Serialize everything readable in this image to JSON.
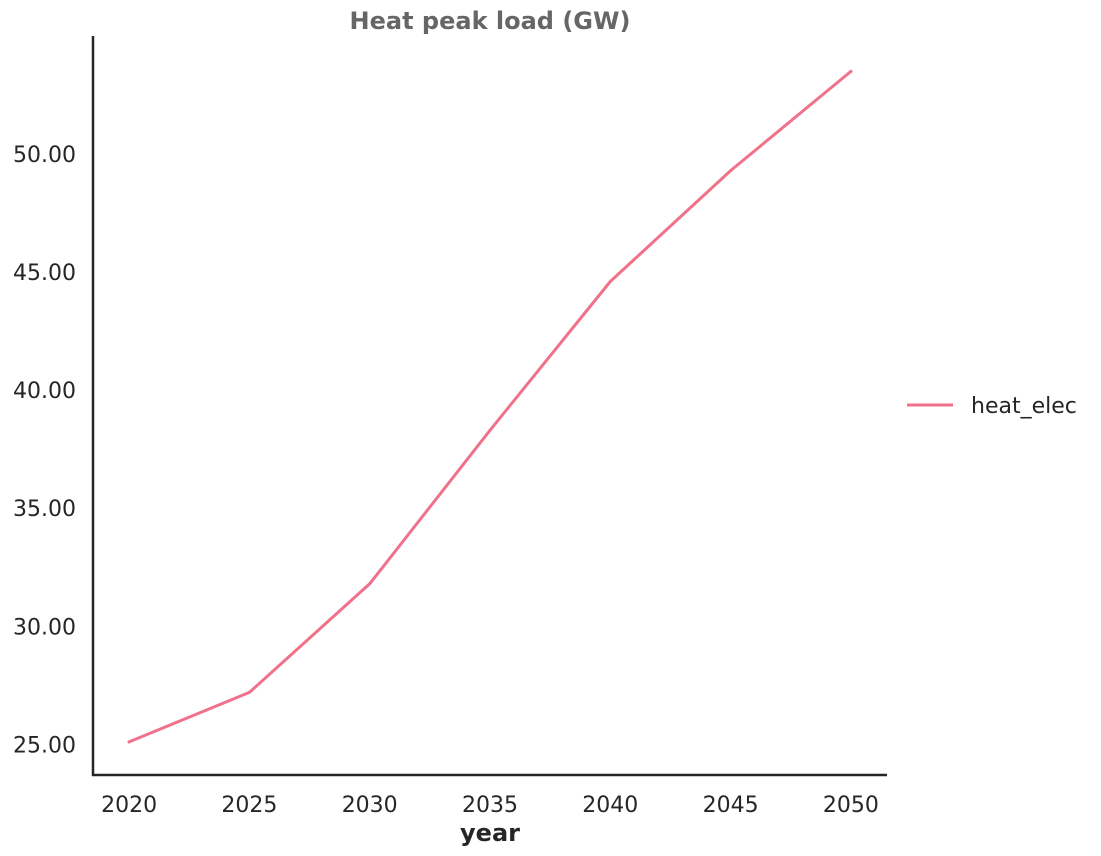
{
  "chart_data": {
    "type": "line",
    "title": "Heat peak load (GW)",
    "xlabel": "year",
    "ylabel": "",
    "x": [
      2020,
      2025,
      2030,
      2035,
      2040,
      2045,
      2050
    ],
    "x_ticks": [
      "2020",
      "2025",
      "2030",
      "2035",
      "2040",
      "2045",
      "2050"
    ],
    "y_ticks": [
      "25.00",
      "30.00",
      "35.00",
      "40.00",
      "45.00",
      "50.00"
    ],
    "xlim": [
      2018.5,
      2051.5
    ],
    "ylim": [
      23.7,
      55.0
    ],
    "grid": false,
    "legend_position": "right",
    "series": [
      {
        "name": "heat_elec",
        "color": "#f0728a",
        "values": [
          25.1,
          27.2,
          31.8,
          38.3,
          44.6,
          49.3,
          53.5
        ]
      }
    ]
  }
}
